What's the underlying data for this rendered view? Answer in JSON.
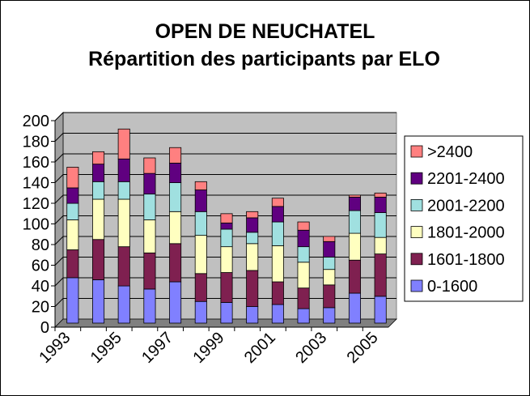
{
  "chart_data": {
    "type": "bar",
    "stacked": true,
    "title": "OPEN DE NEUCHATEL",
    "subtitle": "Répartition des participants par ELO",
    "xlabel": "",
    "ylabel": "",
    "ylim": [
      0,
      200
    ],
    "yticks": [
      0,
      20,
      40,
      60,
      80,
      100,
      120,
      140,
      160,
      180,
      200
    ],
    "grid": true,
    "legend_position": "right",
    "categories": [
      "1993",
      "1994",
      "1995",
      "1996",
      "1997",
      "1998",
      "1999",
      "2000",
      "2001",
      "2002",
      "2003",
      "2004",
      "2005"
    ],
    "x_tick_labels": [
      "1993",
      "1995",
      "1997",
      "1999",
      "2001",
      "2003",
      "2005"
    ],
    "series": [
      {
        "name": "0-1600",
        "color": "#8080ff",
        "values": [
          44,
          42,
          36,
          33,
          40,
          21,
          20,
          16,
          18,
          14,
          15,
          29,
          26
        ]
      },
      {
        "name": "1601-1800",
        "color": "#7f2050",
        "values": [
          27,
          39,
          38,
          35,
          37,
          27,
          29,
          35,
          22,
          20,
          22,
          32,
          41
        ]
      },
      {
        "name": "1801-2000",
        "color": "#ffffc0",
        "values": [
          29,
          39,
          46,
          32,
          31,
          37,
          25,
          26,
          35,
          25,
          15,
          26,
          16
        ]
      },
      {
        "name": "2001-2200",
        "color": "#a0e0e0",
        "values": [
          16,
          17,
          17,
          25,
          28,
          23,
          17,
          11,
          23,
          15,
          12,
          22,
          24
        ]
      },
      {
        "name": "2201-2400",
        "color": "#600080",
        "values": [
          15,
          17,
          22,
          20,
          19,
          21,
          6,
          14,
          15,
          16,
          15,
          13,
          15
        ]
      },
      {
        "name": ">2400",
        "color": "#ff8080",
        "values": [
          20,
          12,
          29,
          15,
          15,
          8,
          9,
          6,
          8,
          8,
          5,
          2,
          4
        ]
      }
    ],
    "colors": {
      "plot_background": "#c0c0c0",
      "bar_outline": "#000000"
    }
  }
}
